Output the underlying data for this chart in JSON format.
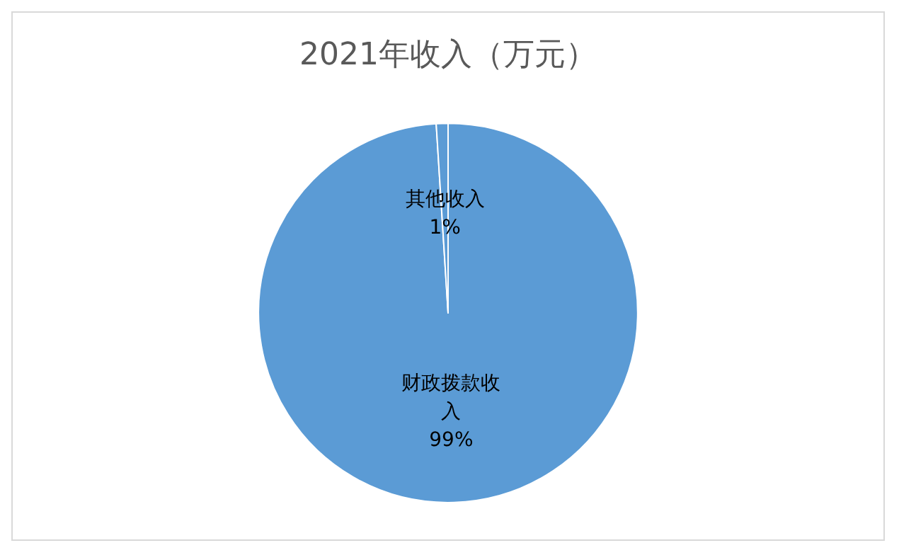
{
  "chart_data": {
    "type": "pie",
    "title": "2021年收入（万元）",
    "categories": [
      "财政拨款收入",
      "其他收入"
    ],
    "values": [
      99,
      1
    ],
    "colors": [
      "#5b9bd5",
      "#5b9bd5"
    ],
    "value_labels": [
      "99%",
      "1%"
    ],
    "legend": false
  }
}
